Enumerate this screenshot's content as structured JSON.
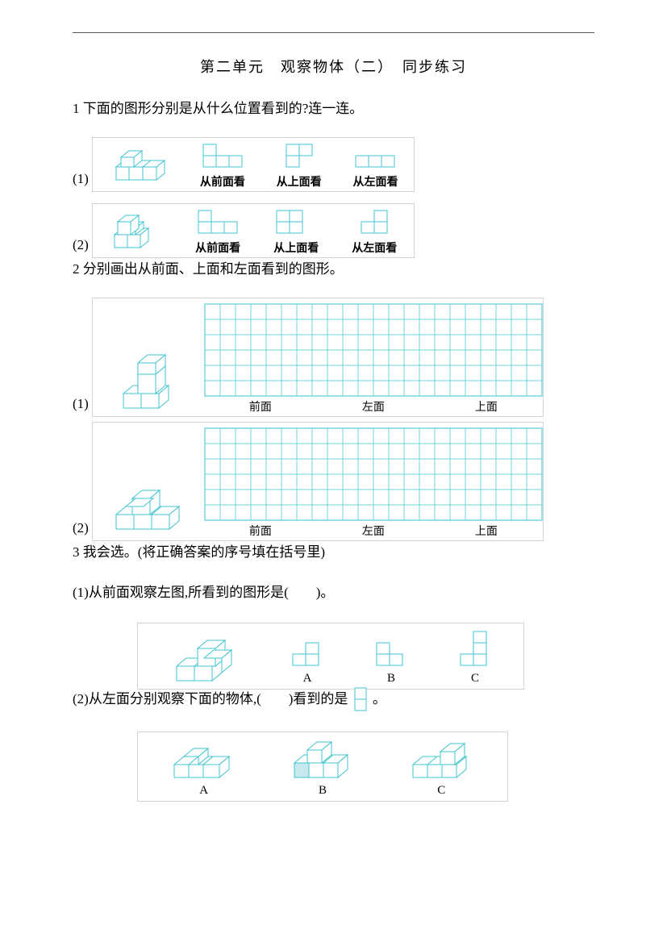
{
  "colors": {
    "stroke": "#42c4cf",
    "grid": "#6fd3db",
    "panel_border": "#cfd4d4",
    "shade": "#c6e9ee",
    "bg": "#ffffff",
    "text": "#000000",
    "rule": "#555555"
  },
  "title": "第二单元　观察物体（二）　同步练习",
  "q1": {
    "prompt": "1 下面的图形分别是从什么位置看到的?连一连。",
    "row1_idx": "(1)",
    "row2_idx": "(2)",
    "labels": [
      "从前面看",
      "从上面看",
      "从左面看"
    ]
  },
  "q2": {
    "prompt": "2 分别画出从前面、上面和左面看到的图形。",
    "row1_idx": "(1)",
    "row2_idx": "(2)",
    "labels": [
      "前面",
      "左面",
      "上面"
    ],
    "grid_cols": 22,
    "grid_rows": 6,
    "cell": 19
  },
  "q3": {
    "prompt": "3 我会选。(将正确答案的序号填在括号里)",
    "p1": "(1)从前面观察左图,所看到的图形是(　　)。",
    "p2_a": "(2)从左面分别观察下面的物体,(　　)看到的是",
    "p2_b": "。",
    "letters": [
      "A",
      "B",
      "C"
    ]
  }
}
